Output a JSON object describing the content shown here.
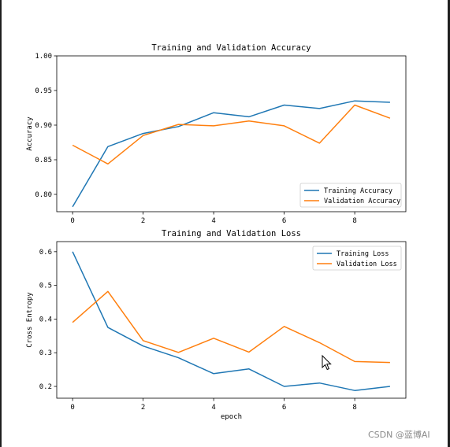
{
  "watermark": "CSDN @蓝博AI",
  "chart_data": [
    {
      "type": "line",
      "title": "Training and Validation Accuracy",
      "xlabel": "",
      "ylabel": "Accuracy",
      "xlim": [
        -0.45,
        9.45
      ],
      "ylim": [
        0.775,
        1.0
      ],
      "xticks": [
        0,
        2,
        4,
        6,
        8
      ],
      "yticks": [
        0.8,
        0.85,
        0.9,
        0.95,
        1.0
      ],
      "ytick_labels": [
        "0.80",
        "0.85",
        "0.90",
        "0.95",
        "1.00"
      ],
      "legend_position": "lower-right",
      "x": [
        0,
        1,
        2,
        3,
        4,
        5,
        6,
        7,
        8,
        9
      ],
      "series": [
        {
          "name": "Training Accuracy",
          "color": "#1f77b4",
          "values": [
            0.782,
            0.869,
            0.888,
            0.898,
            0.918,
            0.912,
            0.929,
            0.924,
            0.935,
            0.933
          ]
        },
        {
          "name": "Validation Accuracy",
          "color": "#ff7f0e",
          "values": [
            0.871,
            0.844,
            0.885,
            0.901,
            0.899,
            0.906,
            0.899,
            0.874,
            0.929,
            0.91
          ]
        }
      ]
    },
    {
      "type": "line",
      "title": "Training and Validation Loss",
      "xlabel": "epoch",
      "ylabel": "Cross Entropy",
      "xlim": [
        -0.45,
        9.45
      ],
      "ylim": [
        0.165,
        0.63
      ],
      "xticks": [
        0,
        2,
        4,
        6,
        8
      ],
      "yticks": [
        0.2,
        0.3,
        0.4,
        0.5,
        0.6
      ],
      "ytick_labels": [
        "0.2",
        "0.3",
        "0.4",
        "0.5",
        "0.6"
      ],
      "legend_position": "upper-right",
      "x": [
        0,
        1,
        2,
        3,
        4,
        5,
        6,
        7,
        8,
        9
      ],
      "series": [
        {
          "name": "Training Loss",
          "color": "#1f77b4",
          "values": [
            0.6,
            0.375,
            0.32,
            0.285,
            0.238,
            0.252,
            0.2,
            0.21,
            0.188,
            0.2
          ]
        },
        {
          "name": "Validation Loss",
          "color": "#ff7f0e",
          "values": [
            0.39,
            0.482,
            0.336,
            0.301,
            0.343,
            0.302,
            0.378,
            0.33,
            0.274,
            0.271
          ]
        }
      ]
    }
  ]
}
